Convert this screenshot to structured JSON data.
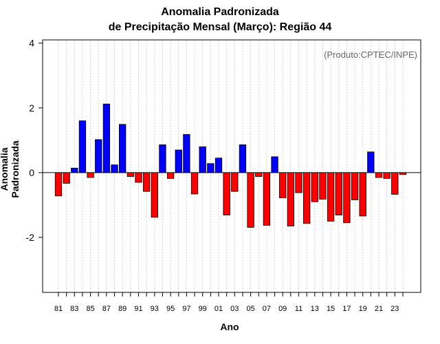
{
  "chart_data": {
    "type": "bar",
    "title": "Anomalia Padronizada",
    "subtitle": "de Precipitação Mensal (Março): Região 44",
    "xlabel": "Ano",
    "ylabel": "Anomalia Padronizada",
    "annotation": "(Produto:CPTEC/INPE)",
    "ylim": [
      -3.7,
      4.1
    ],
    "yticks": [
      -2,
      0,
      2,
      4
    ],
    "positive_color": "#0000ff",
    "negative_color": "#ff0000",
    "categories": [
      "81",
      "82",
      "83",
      "84",
      "85",
      "86",
      "87",
      "88",
      "89",
      "90",
      "91",
      "92",
      "93",
      "94",
      "95",
      "96",
      "97",
      "98",
      "99",
      "00",
      "01",
      "02",
      "03",
      "04",
      "05",
      "06",
      "07",
      "08",
      "09",
      "10",
      "11",
      "12",
      "13",
      "14",
      "15",
      "16",
      "17",
      "18",
      "19",
      "20",
      "21",
      "22",
      "23",
      "24"
    ],
    "tick_labels": [
      "81",
      "83",
      "85",
      "87",
      "89",
      "91",
      "93",
      "95",
      "97",
      "99",
      "01",
      "03",
      "05",
      "07",
      "09",
      "11",
      "13",
      "15",
      "17",
      "19",
      "21",
      "23"
    ],
    "values": [
      -0.72,
      -0.33,
      0.14,
      1.6,
      -0.15,
      1.02,
      2.12,
      0.24,
      1.49,
      -0.12,
      -0.3,
      -0.58,
      -1.38,
      0.86,
      -0.18,
      0.7,
      1.18,
      -0.66,
      0.8,
      0.28,
      0.45,
      -1.31,
      -0.58,
      0.86,
      -1.69,
      -0.12,
      -1.63,
      0.49,
      -0.78,
      -1.65,
      -0.62,
      -1.57,
      -0.9,
      -0.82,
      -1.5,
      -1.31,
      -1.55,
      -0.84,
      -1.34,
      0.64,
      -0.15,
      -0.18,
      -0.67,
      -0.06
    ]
  }
}
